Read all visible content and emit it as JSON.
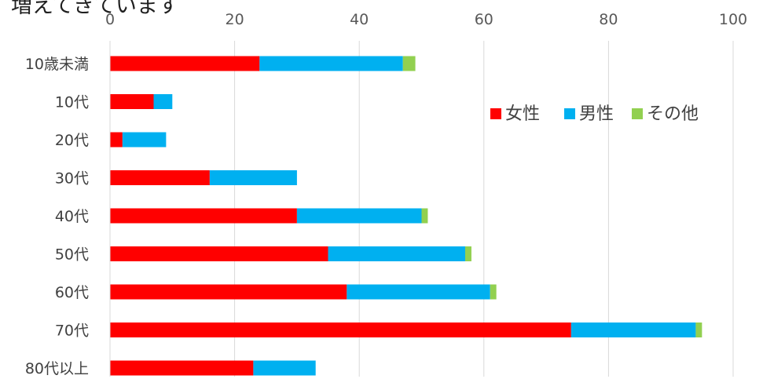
{
  "caption_fragment": "増えてきています",
  "chart_data": {
    "type": "bar",
    "orientation": "horizontal",
    "stacked": true,
    "categories": [
      "10歳未満",
      "10代",
      "20代",
      "30代",
      "40代",
      "50代",
      "60代",
      "70代",
      "80代以上"
    ],
    "series": [
      {
        "name": "女性",
        "color": "#ff0000",
        "values": [
          24,
          7,
          2,
          16,
          30,
          35,
          38,
          74,
          23
        ]
      },
      {
        "name": "男性",
        "color": "#00b0f0",
        "values": [
          23,
          3,
          7,
          14,
          20,
          22,
          23,
          20,
          10
        ]
      },
      {
        "name": "その他",
        "color": "#92d050",
        "values": [
          2,
          0,
          0,
          0,
          1,
          1,
          1,
          1,
          0
        ]
      }
    ],
    "xlim": [
      0,
      100
    ],
    "x_ticks": [
      0,
      20,
      40,
      60,
      80,
      100
    ],
    "x_axis_position": "top",
    "grid": true,
    "legend_position": "top-right"
  }
}
